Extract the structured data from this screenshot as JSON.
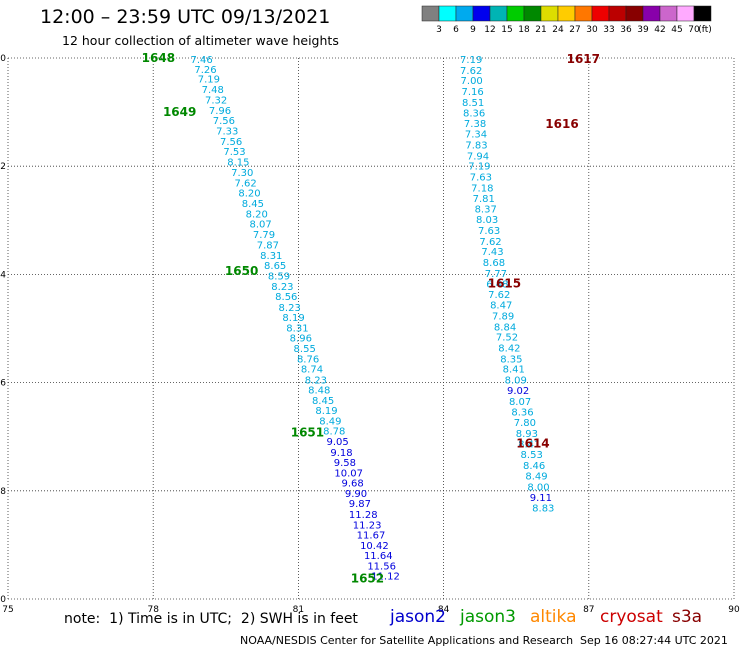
{
  "header": {
    "title": "12:00 – 23:59 UTC 09/13/2021",
    "subtitle": "12 hour collection of altimeter wave heights"
  },
  "colorbar": {
    "colors": [
      "#808080",
      "#00ffff",
      "#00aaee",
      "#0000ee",
      "#00b4b4",
      "#00cc00",
      "#008800",
      "#dddd00",
      "#ffcc00",
      "#ff7700",
      "#ee0000",
      "#bb0000",
      "#880000",
      "#8800aa",
      "#cc66cc",
      "#ffaaff",
      "#000000"
    ],
    "ticks": [
      "3",
      "6",
      "9",
      "12",
      "15",
      "18",
      "21",
      "24",
      "27",
      "30",
      "33",
      "36",
      "39",
      "42",
      "45",
      "70"
    ],
    "unit": "(ft)"
  },
  "footer": {
    "note": "note:  1) Time is in UTC;  2) SWH is in feet",
    "satellites": [
      {
        "name": "jason2",
        "color": "#0000cc"
      },
      {
        "name": "jason3",
        "color": "#009900"
      },
      {
        "name": "altika",
        "color": "#ff8800"
      },
      {
        "name": "cryosat",
        "color": "#cc0000"
      },
      {
        "name": "s3a",
        "color": "#880000"
      }
    ],
    "credit": "NOAA/NESDIS Center for Satellite Applications and Research",
    "timestamp": "Sep 16 08:27:44 UTC 2021"
  },
  "chart_data": {
    "type": "scatter",
    "xlim": [
      75,
      90
    ],
    "ylim": [
      -10,
      0
    ],
    "xticks": [
      "75",
      "78",
      "81",
      "84",
      "87",
      "90"
    ],
    "yticks": [
      "0",
      "-2",
      "-4",
      "-6",
      "-8",
      "-10"
    ],
    "grid": true,
    "series": [
      {
        "name": "jason3",
        "color_rule": "SWH color scale",
        "points": [
          {
            "x": 79.0,
            "y": -0.02,
            "v": "7.46"
          },
          {
            "x": 79.08,
            "y": -0.2,
            "v": "7.26"
          },
          {
            "x": 79.15,
            "y": -0.38,
            "v": "7.19"
          },
          {
            "x": 79.23,
            "y": -0.57,
            "v": "7.48"
          },
          {
            "x": 79.3,
            "y": -0.77,
            "v": "7.32"
          },
          {
            "x": 79.38,
            "y": -0.96,
            "v": "7.96"
          },
          {
            "x": 79.46,
            "y": -1.15,
            "v": "7.56"
          },
          {
            "x": 79.53,
            "y": -1.34,
            "v": "7.33"
          },
          {
            "x": 79.61,
            "y": -1.53,
            "v": "7.56"
          },
          {
            "x": 79.68,
            "y": -1.72,
            "v": "7.53"
          },
          {
            "x": 79.76,
            "y": -1.91,
            "v": "8.15"
          },
          {
            "x": 79.84,
            "y": -2.11,
            "v": "7.30"
          },
          {
            "x": 79.91,
            "y": -2.3,
            "v": "7.62"
          },
          {
            "x": 79.99,
            "y": -2.49,
            "v": "8.20"
          },
          {
            "x": 80.06,
            "y": -2.68,
            "v": "8.45"
          },
          {
            "x": 80.14,
            "y": -2.87,
            "v": "8.20"
          },
          {
            "x": 80.22,
            "y": -3.06,
            "v": "8.07"
          },
          {
            "x": 80.29,
            "y": -3.25,
            "v": "7.79"
          },
          {
            "x": 80.37,
            "y": -3.45,
            "v": "7.87"
          },
          {
            "x": 80.44,
            "y": -3.64,
            "v": "8.31"
          },
          {
            "x": 80.52,
            "y": -3.83,
            "v": "8.65"
          },
          {
            "x": 80.6,
            "y": -4.02,
            "v": "8.59"
          },
          {
            "x": 80.67,
            "y": -4.21,
            "v": "8.23"
          },
          {
            "x": 80.75,
            "y": -4.4,
            "v": "8.56"
          },
          {
            "x": 80.82,
            "y": -4.6,
            "v": "8.23"
          },
          {
            "x": 80.9,
            "y": -4.79,
            "v": "8.19"
          },
          {
            "x": 80.98,
            "y": -4.98,
            "v": "8.31"
          },
          {
            "x": 81.05,
            "y": -5.17,
            "v": "8.96"
          },
          {
            "x": 81.13,
            "y": -5.36,
            "v": "8.55"
          },
          {
            "x": 81.2,
            "y": -5.55,
            "v": "8.76"
          },
          {
            "x": 81.28,
            "y": -5.74,
            "v": "8.74"
          },
          {
            "x": 81.36,
            "y": -5.94,
            "v": "8.23"
          },
          {
            "x": 81.43,
            "y": -6.13,
            "v": "8.48"
          },
          {
            "x": 81.51,
            "y": -6.32,
            "v": "8.45"
          },
          {
            "x": 81.58,
            "y": -6.51,
            "v": "8.19"
          },
          {
            "x": 81.66,
            "y": -6.7,
            "v": "8.49"
          },
          {
            "x": 81.74,
            "y": -6.89,
            "v": "8.78"
          },
          {
            "x": 81.81,
            "y": -7.08,
            "v": "9.05"
          },
          {
            "x": 81.89,
            "y": -7.28,
            "v": "9.18"
          },
          {
            "x": 81.96,
            "y": -7.47,
            "v": "9.58"
          },
          {
            "x": 82.04,
            "y": -7.66,
            "v": "10.07"
          },
          {
            "x": 82.12,
            "y": -7.85,
            "v": "9.68"
          },
          {
            "x": 82.19,
            "y": -8.04,
            "v": "9.90"
          },
          {
            "x": 82.27,
            "y": -8.23,
            "v": "9.87"
          },
          {
            "x": 82.34,
            "y": -8.43,
            "v": "11.28"
          },
          {
            "x": 82.42,
            "y": -8.62,
            "v": "11.23"
          },
          {
            "x": 82.5,
            "y": -8.81,
            "v": "11.67"
          },
          {
            "x": 82.57,
            "y": -9.0,
            "v": "10.42"
          },
          {
            "x": 82.65,
            "y": -9.19,
            "v": "11.64"
          },
          {
            "x": 82.72,
            "y": -9.38,
            "v": "11.56"
          },
          {
            "x": 82.8,
            "y": -9.57,
            "v": "11.12"
          }
        ],
        "pass_labels": [
          {
            "x": 81.6,
            "y": -9.62,
            "v": "1652"
          },
          {
            "x": 80.36,
            "y": -6.92,
            "v": "1651"
          },
          {
            "x": 79.0,
            "y": -3.94,
            "v": "1650"
          },
          {
            "x": 77.72,
            "y": -1.0,
            "v": "1649"
          },
          {
            "x": 77.28,
            "y": 0.0,
            "v": "1648"
          }
        ]
      },
      {
        "name": "s3a",
        "color_rule": "SWH color scale",
        "points": [
          {
            "x": 84.57,
            "y": -0.02,
            "v": "7.19"
          },
          {
            "x": 84.57,
            "y": -0.22,
            "v": "7.62"
          },
          {
            "x": 84.58,
            "y": -0.41,
            "v": "7.00"
          },
          {
            "x": 84.6,
            "y": -0.61,
            "v": "7.16"
          },
          {
            "x": 84.61,
            "y": -0.81,
            "v": "8.51"
          },
          {
            "x": 84.63,
            "y": -1.01,
            "v": "8.36"
          },
          {
            "x": 84.65,
            "y": -1.2,
            "v": "7.38"
          },
          {
            "x": 84.67,
            "y": -1.4,
            "v": "7.34"
          },
          {
            "x": 84.68,
            "y": -1.6,
            "v": "7.83"
          },
          {
            "x": 84.71,
            "y": -1.8,
            "v": "7.94"
          },
          {
            "x": 84.74,
            "y": -1.99,
            "v": "7.19"
          },
          {
            "x": 84.77,
            "y": -2.19,
            "v": "7.63"
          },
          {
            "x": 84.8,
            "y": -2.39,
            "v": "7.18"
          },
          {
            "x": 84.83,
            "y": -2.59,
            "v": "7.81"
          },
          {
            "x": 84.87,
            "y": -2.78,
            "v": "8.37"
          },
          {
            "x": 84.9,
            "y": -2.98,
            "v": "8.03"
          },
          {
            "x": 84.94,
            "y": -3.18,
            "v": "7.63"
          },
          {
            "x": 84.97,
            "y": -3.38,
            "v": "7.62"
          },
          {
            "x": 85.01,
            "y": -3.57,
            "v": "7.43"
          },
          {
            "x": 85.04,
            "y": -3.77,
            "v": "8.68"
          },
          {
            "x": 85.08,
            "y": -3.97,
            "v": "7.77"
          },
          {
            "x": 85.11,
            "y": -4.17,
            "v": "6.48"
          },
          {
            "x": 85.15,
            "y": -4.36,
            "v": "7.62"
          },
          {
            "x": 85.19,
            "y": -4.56,
            "v": "8.47"
          },
          {
            "x": 85.23,
            "y": -4.76,
            "v": "7.89"
          },
          {
            "x": 85.27,
            "y": -4.96,
            "v": "8.84"
          },
          {
            "x": 85.31,
            "y": -5.15,
            "v": "7.52"
          },
          {
            "x": 85.36,
            "y": -5.35,
            "v": "8.42"
          },
          {
            "x": 85.4,
            "y": -5.55,
            "v": "8.35"
          },
          {
            "x": 85.45,
            "y": -5.74,
            "v": "8.41"
          },
          {
            "x": 85.49,
            "y": -5.94,
            "v": "8.09"
          },
          {
            "x": 85.54,
            "y": -6.14,
            "v": "9.02"
          },
          {
            "x": 85.58,
            "y": -6.34,
            "v": "8.07"
          },
          {
            "x": 85.63,
            "y": -6.53,
            "v": "8.36"
          },
          {
            "x": 85.68,
            "y": -6.73,
            "v": "7.80"
          },
          {
            "x": 85.72,
            "y": -6.93,
            "v": "8.93"
          },
          {
            "x": 85.77,
            "y": -7.13,
            "v": "8.41"
          },
          {
            "x": 85.82,
            "y": -7.32,
            "v": "8.53"
          },
          {
            "x": 85.87,
            "y": -7.52,
            "v": "8.46"
          },
          {
            "x": 85.92,
            "y": -7.72,
            "v": "8.49"
          },
          {
            "x": 85.96,
            "y": -7.92,
            "v": "8.00"
          },
          {
            "x": 86.01,
            "y": -8.11,
            "v": "9.11"
          },
          {
            "x": 86.06,
            "y": -8.31,
            "v": "8.83"
          }
        ],
        "pass_labels": [
          {
            "x": 86.06,
            "y": -0.02,
            "v": "1617"
          },
          {
            "x": 85.62,
            "y": -1.22,
            "v": "1616"
          },
          {
            "x": 84.43,
            "y": -4.17,
            "v": "1615"
          },
          {
            "x": 85.02,
            "y": -7.13,
            "v": "1614"
          }
        ]
      }
    ]
  }
}
